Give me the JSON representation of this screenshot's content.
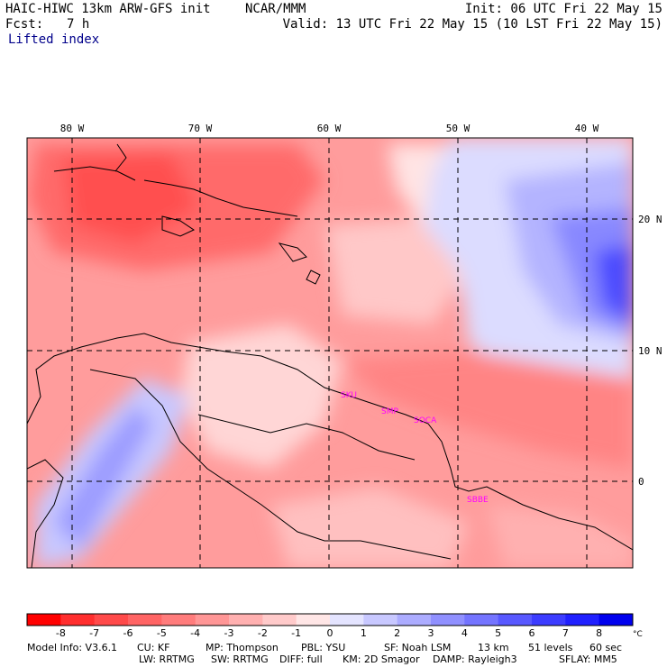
{
  "header": {
    "model": "HAIC-HIWC 13km ARW-GFS init",
    "org": "NCAR/MMM",
    "init": "Init: 06 UTC Fri 22 May 15",
    "fcst_label": "Fcst:",
    "fcst_value": "7 h",
    "valid": "Valid: 13 UTC Fri 22 May 15 (10 LST Fri 22 May 15)",
    "field": "Lifted index"
  },
  "map": {
    "lon_labels": [
      "80 W",
      "70 W",
      "60 W",
      "50 W",
      "40 W"
    ],
    "lat_labels": [
      "20 N",
      "10 N",
      "0"
    ],
    "stations": [
      {
        "id": "SKU",
        "color": "#ff00ff"
      },
      {
        "id": "SMP",
        "color": "#ff00ff"
      },
      {
        "id": "SOCA",
        "color": "#ff00ff"
      },
      {
        "id": "SBBE",
        "color": "#ff00ff"
      }
    ]
  },
  "colorbar": {
    "labels": [
      "-8",
      "-7",
      "-6",
      "-5",
      "-4",
      "-3",
      "-2",
      "-1",
      "0",
      "1",
      "2",
      "3",
      "4",
      "5",
      "6",
      "7",
      "8"
    ],
    "unit": "°C",
    "colors": [
      "#ff0000",
      "#ff2e2e",
      "#ff4a4a",
      "#ff6464",
      "#ff7c7c",
      "#ff9696",
      "#ffb0b0",
      "#ffcaca",
      "#ffe6e6",
      "#e4e4ff",
      "#c8c8ff",
      "#acacff",
      "#9090ff",
      "#7474ff",
      "#5858ff",
      "#3c3cff",
      "#2020ff",
      "#0000ee"
    ]
  },
  "footer": {
    "line1": [
      "Model Info: V3.6.1",
      "CU: KF",
      "MP: Thompson",
      "PBL: YSU",
      "SF: Noah LSM",
      "13 km",
      "51 levels",
      "60 sec"
    ],
    "line2": [
      "LW: RRTMG",
      "SW: RRTMG",
      "DIFF: full",
      "KM: 2D Smagor",
      "DAMP: Rayleigh3",
      "SFLAY: MM5"
    ]
  }
}
